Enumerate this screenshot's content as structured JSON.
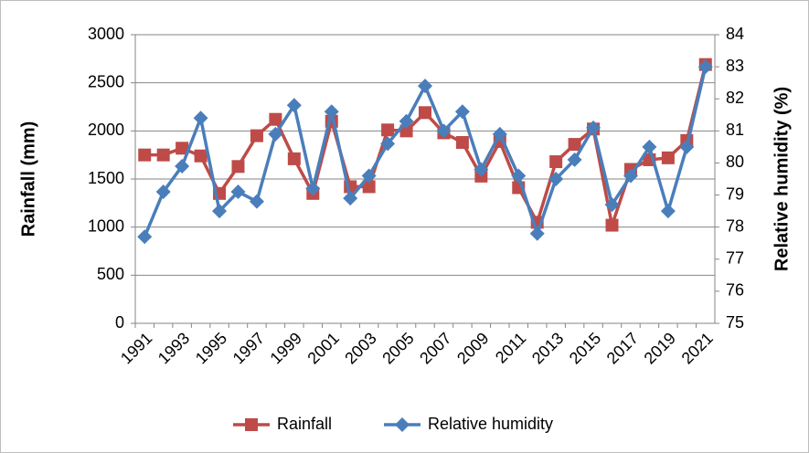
{
  "chart_data": {
    "type": "line",
    "categories": [
      "1991",
      null,
      "1993",
      null,
      "1995",
      null,
      "1997",
      null,
      "1999",
      null,
      "2001",
      null,
      "2003",
      null,
      "2005",
      null,
      "2007",
      null,
      "2009",
      null,
      "2011",
      null,
      "2013",
      null,
      "2015",
      null,
      "2017",
      null,
      "2019",
      null,
      "2021"
    ],
    "y_label": "Rainfall (mm)",
    "y2_label": "Relative humidity (%)",
    "series": [
      {
        "name": "Rainfall",
        "color": "#be4b48",
        "marker": "square",
        "values": [
          1750,
          1750,
          1820,
          1740,
          1350,
          1630,
          1950,
          2120,
          1710,
          1350,
          2100,
          1420,
          1420,
          2010,
          2000,
          2190,
          1980,
          1880,
          1530,
          1890,
          1410,
          1050,
          1680,
          1860,
          2020,
          1020,
          1600,
          1700,
          1720,
          1900,
          2690
        ]
      },
      {
        "name": "Relative humidity",
        "color": "#4a7ebb",
        "marker": "diamond",
        "axis": "y2",
        "values": [
          77.7,
          79.1,
          79.9,
          81.4,
          78.5,
          79.1,
          78.8,
          80.9,
          81.8,
          79.2,
          81.6,
          78.9,
          79.6,
          80.6,
          81.3,
          82.4,
          81.0,
          81.6,
          79.8,
          80.9,
          79.6,
          77.8,
          79.5,
          80.1,
          81.1,
          78.7,
          79.6,
          80.5,
          78.5,
          80.5,
          83.0
        ]
      }
    ],
    "ylim": [
      0,
      3000
    ],
    "yticks": [
      0,
      500,
      1000,
      1500,
      2000,
      2500,
      3000
    ],
    "y2lim": [
      75,
      84
    ],
    "y2ticks": [
      75,
      76,
      77,
      78,
      79,
      80,
      81,
      82,
      83,
      84
    ],
    "grid": true,
    "legend": "bottom"
  }
}
